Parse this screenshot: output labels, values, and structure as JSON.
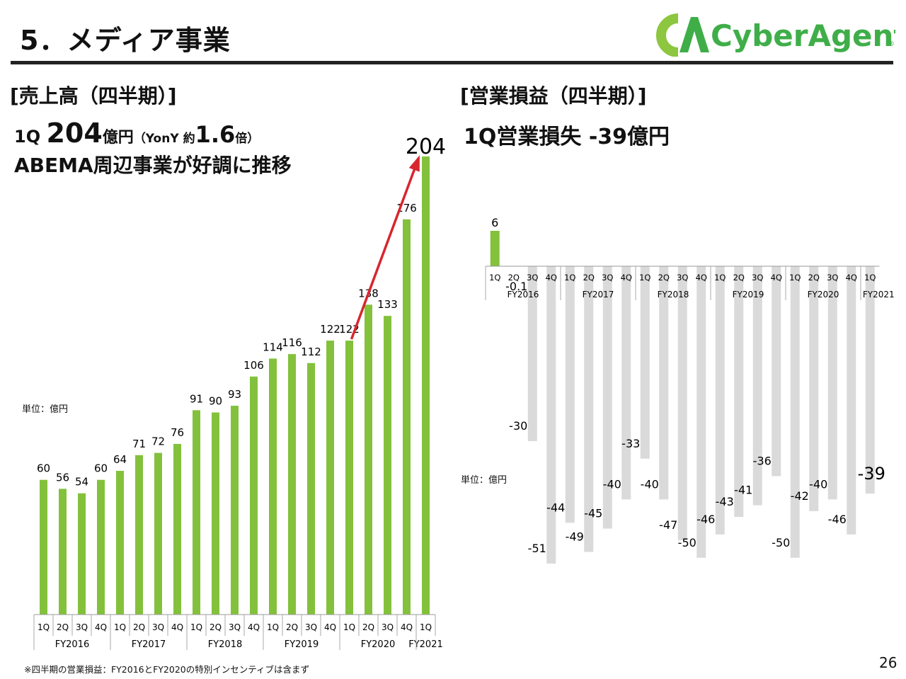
{
  "header": {
    "title": "5．メディア事業",
    "logo_text": "CyberAgent",
    "logo_mark": "CA",
    "logo_reg": "®"
  },
  "revenue": {
    "heading": "[売上高（四半期）]",
    "line1": {
      "q": "1Q ",
      "value": "204",
      "unit": "億円",
      "yony_open": "（YonY 約",
      "yony_value": "1.6",
      "yony_close": "倍）"
    },
    "line2": "ABEMA周辺事業が好調に推移",
    "unit_label": "単位：億円"
  },
  "operating": {
    "heading": "[営業損益（四半期）]",
    "line1": "1Q営業損失 -39億円",
    "unit_label": "単位：億円"
  },
  "footnote": "※四半期の営業損益：FY2016とFY2020の特別インセンティブは含まず",
  "page_number": "26",
  "colors": {
    "bar": "#83C13C",
    "neg_bar": "#DADADA",
    "arrow": "#D7262E",
    "logo": "#3FAE49",
    "logo_light": "#8DC63F"
  },
  "chart_data": [
    {
      "type": "bar",
      "title": "売上高（四半期）",
      "categories": [
        "1Q",
        "2Q",
        "3Q",
        "4Q",
        "1Q",
        "2Q",
        "3Q",
        "4Q",
        "1Q",
        "2Q",
        "3Q",
        "4Q",
        "1Q",
        "2Q",
        "3Q",
        "4Q",
        "1Q",
        "2Q",
        "3Q",
        "4Q",
        "1Q"
      ],
      "groups": [
        {
          "label": "FY2016",
          "count": 4
        },
        {
          "label": "FY2017",
          "count": 4
        },
        {
          "label": "FY2018",
          "count": 4
        },
        {
          "label": "FY2019",
          "count": 4
        },
        {
          "label": "FY2020",
          "count": 4
        },
        {
          "label": "FY2021",
          "count": 1
        }
      ],
      "values": [
        60,
        56,
        54,
        60,
        64,
        71,
        72,
        76,
        91,
        90,
        93,
        106,
        114,
        116,
        112,
        122,
        122,
        138,
        133,
        176,
        204
      ],
      "ylim": [
        0,
        204
      ],
      "arrow": {
        "from_index": 16,
        "to_index": 20
      },
      "ylabel": "億円"
    },
    {
      "type": "bar",
      "title": "営業損益（四半期）",
      "categories": [
        "1Q",
        "2Q",
        "3Q",
        "4Q",
        "1Q",
        "2Q",
        "3Q",
        "4Q",
        "1Q",
        "2Q",
        "3Q",
        "4Q",
        "1Q",
        "2Q",
        "3Q",
        "4Q",
        "1Q",
        "2Q",
        "3Q",
        "4Q",
        "1Q"
      ],
      "groups": [
        {
          "label": "FY2016",
          "count": 4
        },
        {
          "label": "FY2017",
          "count": 4
        },
        {
          "label": "FY2018",
          "count": 4
        },
        {
          "label": "FY2019",
          "count": 4
        },
        {
          "label": "FY2020",
          "count": 4
        },
        {
          "label": "FY2021",
          "count": 1
        }
      ],
      "values": [
        6,
        -0.1,
        -30,
        -51,
        -44,
        -49,
        -45,
        -40,
        -33,
        -40,
        -47,
        -50,
        -46,
        -43,
        -41,
        -36,
        -50,
        -42,
        -40,
        -46,
        -39
      ],
      "labels": [
        "6",
        "-0.1",
        "-30",
        "-51",
        "-44",
        "-49",
        "-45",
        "-40",
        "-33",
        "-40",
        "-47",
        "-50",
        "-46",
        "-43",
        "-41",
        "-36",
        "-50",
        "-42",
        "-40",
        "-46",
        "-39"
      ],
      "ylabel": "億円"
    }
  ]
}
